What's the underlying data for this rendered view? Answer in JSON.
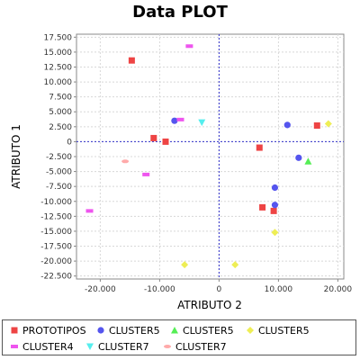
{
  "chart_data": {
    "type": "scatter",
    "title": "Data PLOT",
    "xlabel": "ATRIBUTO 2",
    "ylabel": "ATRIBUTO 1",
    "xlim": [
      -24000,
      21000
    ],
    "ylim": [
      -23000,
      18000
    ],
    "xticks": [
      -20000,
      -10000,
      0,
      10000,
      20000
    ],
    "xtick_labels": [
      "-20.000",
      "-10.000",
      "0",
      "10.000",
      "20.000"
    ],
    "yticks": [
      17500,
      15000,
      12500,
      10000,
      7500,
      5000,
      2500,
      0,
      -2500,
      -5000,
      -7500,
      -10000,
      -12500,
      -15000,
      -17500,
      -20000,
      -22500
    ],
    "ytick_labels": [
      "17.500",
      "15.000",
      "12.500",
      "10.000",
      "7.500",
      "5.000",
      "2.500",
      "0",
      "-2.500",
      "-5.000",
      "-7.500",
      "-10.000",
      "-12.500",
      "-15.000",
      "-17.500",
      "-20.000",
      "-22.500"
    ],
    "grid": true,
    "zero_lines": true,
    "legend_position": "bottom",
    "series": [
      {
        "name": "PROTOTIPOS",
        "color": "#ee4444",
        "marker": "square",
        "points": [
          [
            -14700,
            13600
          ],
          [
            -11000,
            600
          ],
          [
            -9000,
            0
          ],
          [
            6800,
            -1000
          ],
          [
            7300,
            -11000
          ],
          [
            9200,
            -11600
          ],
          [
            16500,
            2700
          ]
        ]
      },
      {
        "name": "CLUSTER5",
        "color": "#5555ee",
        "marker": "circle",
        "points": [
          [
            -7500,
            3500
          ],
          [
            11500,
            2800
          ],
          [
            13400,
            -2700
          ],
          [
            9400,
            -7700
          ],
          [
            9400,
            -10600
          ]
        ]
      },
      {
        "name": "CLUSTER5",
        "color": "#55ee55",
        "marker": "triangle-up",
        "points": [
          [
            15000,
            -3300
          ]
        ]
      },
      {
        "name": "CLUSTER5",
        "color": "#eeee55",
        "marker": "diamond",
        "points": [
          [
            18400,
            3000
          ],
          [
            9400,
            -15200
          ],
          [
            -5800,
            -20600
          ],
          [
            2700,
            -20600
          ]
        ]
      },
      {
        "name": "CLUSTER4",
        "color": "#ee55ee",
        "marker": "rect-wide",
        "points": [
          [
            -5000,
            16000
          ],
          [
            -6500,
            3700
          ],
          [
            -12300,
            -5500
          ],
          [
            -21800,
            -11600
          ]
        ]
      },
      {
        "name": "CLUSTER7",
        "color": "#55eeee",
        "marker": "triangle-down",
        "points": [
          [
            -2900,
            3200
          ]
        ]
      },
      {
        "name": "CLUSTER7",
        "color": "#ffaaaa",
        "marker": "ellipse",
        "points": [
          [
            -15800,
            -3300
          ]
        ]
      }
    ]
  }
}
